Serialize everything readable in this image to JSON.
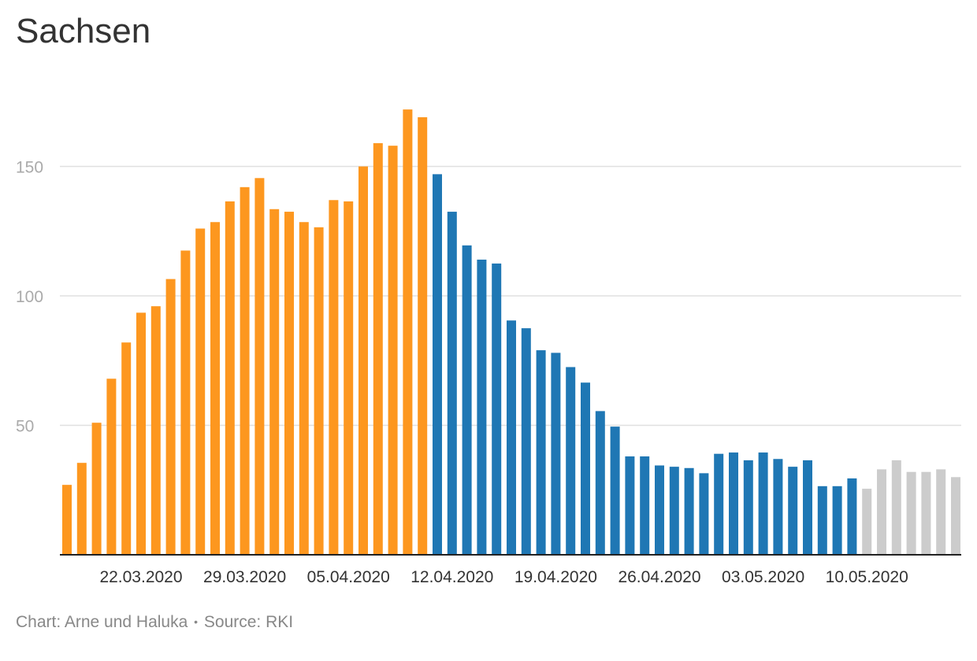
{
  "chart_data": {
    "type": "bar",
    "title": "Sachsen",
    "ylim": [
      0,
      180
    ],
    "yticks": [
      50,
      100,
      150
    ],
    "grid": true,
    "xtick_labels": [
      "22.03.2020",
      "29.03.2020",
      "05.04.2020",
      "12.04.2020",
      "19.04.2020",
      "26.04.2020",
      "03.05.2020",
      "10.05.2020"
    ],
    "xtick_indices": [
      5,
      12,
      19,
      26,
      33,
      40,
      47,
      54
    ],
    "colors": {
      "orange": "#fd971f",
      "blue": "#1f77b4",
      "gray": "#cccccc"
    },
    "values": [
      27,
      35.5,
      51,
      68,
      82,
      93.5,
      96,
      106.5,
      117.5,
      126,
      128.5,
      136.5,
      142,
      145.5,
      133.5,
      132.5,
      128.5,
      126.5,
      137,
      136.5,
      150,
      159,
      158,
      172,
      169,
      147,
      132.5,
      119.5,
      114,
      112.5,
      90.5,
      87.5,
      79,
      78,
      72.5,
      66.5,
      55.5,
      49.5,
      38,
      38,
      34.5,
      34,
      33.5,
      31.5,
      39,
      39.5,
      36.5,
      39.5,
      37,
      34,
      36.5,
      26.5,
      26.5,
      29.5,
      25.5,
      33,
      36.5,
      32,
      32,
      33,
      30
    ],
    "bar_colors": [
      "orange",
      "orange",
      "orange",
      "orange",
      "orange",
      "orange",
      "orange",
      "orange",
      "orange",
      "orange",
      "orange",
      "orange",
      "orange",
      "orange",
      "orange",
      "orange",
      "orange",
      "orange",
      "orange",
      "orange",
      "orange",
      "orange",
      "orange",
      "orange",
      "orange",
      "blue",
      "blue",
      "blue",
      "blue",
      "blue",
      "blue",
      "blue",
      "blue",
      "blue",
      "blue",
      "blue",
      "blue",
      "blue",
      "blue",
      "blue",
      "blue",
      "blue",
      "blue",
      "blue",
      "blue",
      "blue",
      "blue",
      "blue",
      "blue",
      "blue",
      "blue",
      "blue",
      "blue",
      "blue",
      "gray",
      "gray",
      "gray",
      "gray",
      "gray",
      "gray",
      "gray"
    ]
  },
  "footer": {
    "credit": "Chart: Arne und Haluka",
    "separator": "•",
    "source": "Source: RKI"
  }
}
